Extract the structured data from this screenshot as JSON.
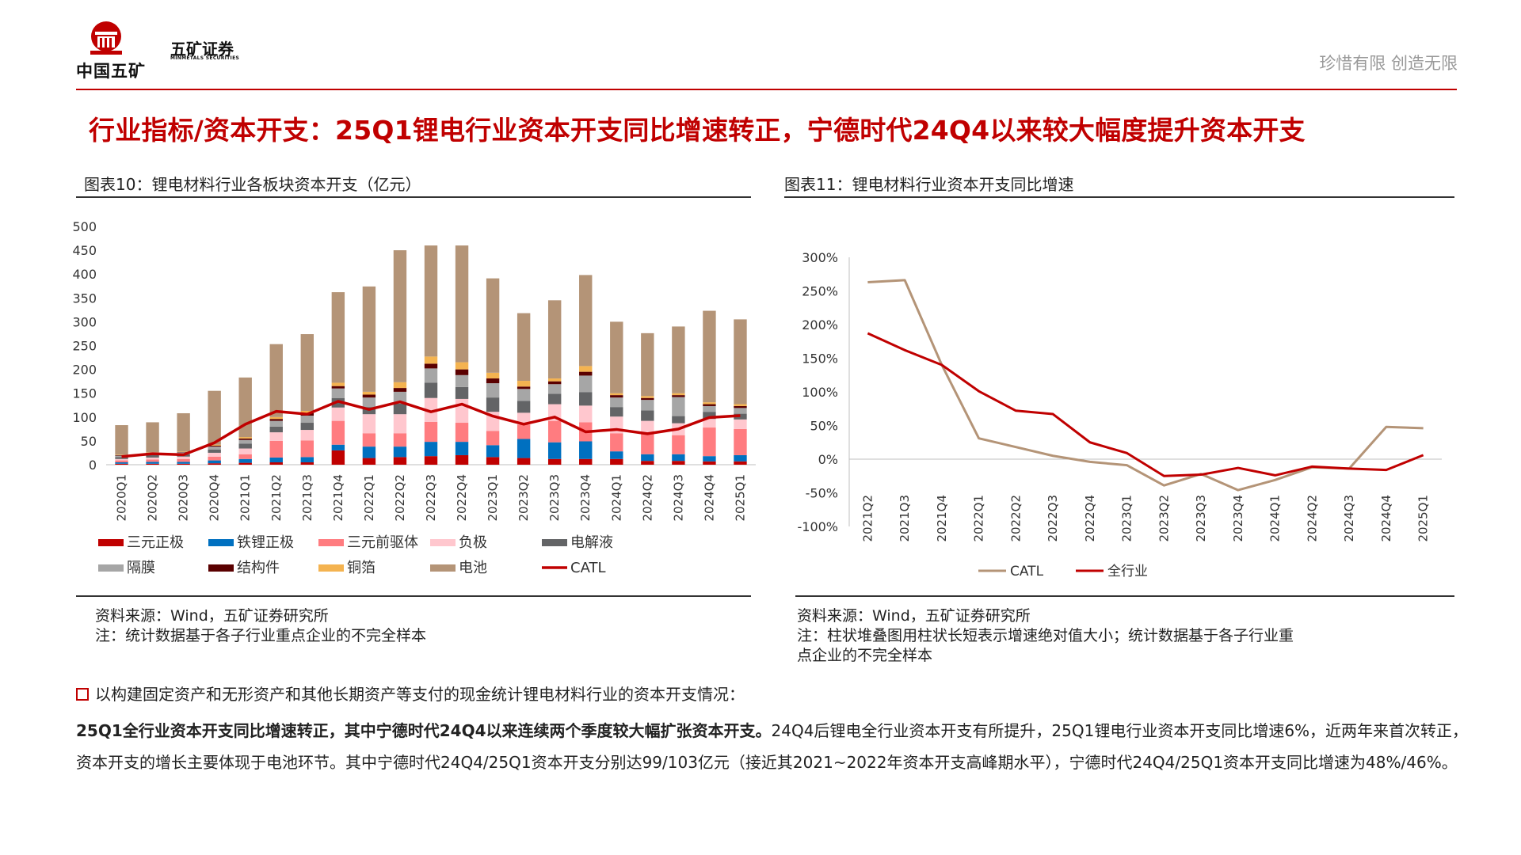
{
  "header": {
    "brand_cn": "中国五矿",
    "brand_securities": "五矿证券",
    "brand_en": "MINMETALS SECURITIES",
    "slogan": "珍惜有限  创造无限",
    "accent_color": "#c00000"
  },
  "main_title": "行业指标/资本开支：25Q1锂电行业资本开支同比增速转正，宁德时代24Q4以来较大幅度提升资本开支",
  "left_panel": {
    "title": "图表10：锂电材料行业各板块资本开支（亿元）",
    "source": "资料来源：Wind，五矿证券研究所",
    "note": "注：统计数据基于各子行业重点企业的不完全样本"
  },
  "right_panel": {
    "title": "图表11：锂电材料行业资本开支同比增速",
    "source": "资料来源：Wind，五矿证券研究所",
    "note_line1": "注：柱状堆叠图用柱状长短表示增速绝对值大小；统计数据基于各子行业重",
    "note_line2": "点企业的不完全样本"
  },
  "chart_data": [
    {
      "type": "bar",
      "stacked": true,
      "categories": [
        "2020Q1",
        "2020Q2",
        "2020Q3",
        "2020Q4",
        "2021Q1",
        "2021Q2",
        "2021Q3",
        "2021Q4",
        "2022Q1",
        "2022Q2",
        "2022Q3",
        "2022Q4",
        "2023Q1",
        "2023Q2",
        "2023Q3",
        "2023Q4",
        "2024Q1",
        "2024Q2",
        "2024Q3",
        "2024Q4",
        "2025Q1"
      ],
      "ylim": [
        0,
        500
      ],
      "yticks": [
        "500",
        "450",
        "400",
        "350",
        "300",
        "250",
        "200",
        "150",
        "100",
        "50",
        "0"
      ],
      "series": [
        {
          "name": "三元正极",
          "color": "#c00000",
          "values": [
            2,
            2,
            2,
            3,
            4,
            5,
            5,
            30,
            14,
            16,
            18,
            20,
            16,
            14,
            12,
            12,
            12,
            8,
            8,
            7,
            7
          ]
        },
        {
          "name": "铁锂正极",
          "color": "#0070c0",
          "values": [
            3,
            4,
            4,
            6,
            8,
            10,
            11,
            12,
            24,
            22,
            30,
            28,
            25,
            40,
            35,
            37,
            16,
            14,
            14,
            11,
            13
          ]
        },
        {
          "name": "三元前驱体",
          "color": "#ff7c80",
          "values": [
            4,
            5,
            6,
            8,
            10,
            35,
            35,
            50,
            28,
            28,
            42,
            40,
            30,
            30,
            45,
            40,
            38,
            45,
            40,
            60,
            55
          ]
        },
        {
          "name": "负极",
          "color": "#ffc7ce",
          "values": [
            3,
            4,
            5,
            8,
            12,
            18,
            22,
            28,
            40,
            40,
            50,
            50,
            40,
            25,
            35,
            35,
            35,
            25,
            25,
            18,
            20
          ]
        },
        {
          "name": "电解液",
          "color": "#636466",
          "values": [
            4,
            5,
            5,
            7,
            10,
            12,
            15,
            20,
            15,
            22,
            32,
            25,
            30,
            25,
            22,
            28,
            20,
            22,
            15,
            15,
            12
          ]
        },
        {
          "name": "隔膜",
          "color": "#a6a6a6",
          "values": [
            3,
            4,
            4,
            6,
            8,
            12,
            15,
            20,
            20,
            25,
            30,
            25,
            30,
            25,
            20,
            35,
            20,
            22,
            40,
            12,
            12
          ]
        },
        {
          "name": "结构件",
          "color": "#5a0000",
          "values": [
            1,
            1,
            1,
            2,
            3,
            4,
            5,
            5,
            6,
            8,
            10,
            12,
            10,
            5,
            6,
            8,
            5,
            4,
            4,
            4,
            4
          ]
        },
        {
          "name": "铜箔",
          "color": "#f4b350",
          "values": [
            1,
            1,
            1,
            2,
            3,
            4,
            5,
            7,
            6,
            12,
            15,
            15,
            12,
            12,
            6,
            12,
            4,
            4,
            4,
            4,
            4
          ]
        },
        {
          "name": "电池",
          "color": "#b49477",
          "values": [
            62,
            63,
            80,
            113,
            125,
            153,
            161,
            190,
            221,
            277,
            233,
            245,
            198,
            142,
            164,
            191,
            150,
            132,
            140,
            192,
            178
          ]
        }
      ],
      "line": {
        "name": "CATL",
        "color": "#c00000",
        "values": [
          17,
          23,
          21,
          46,
          85,
          112,
          106,
          133,
          116,
          132,
          111,
          127,
          102,
          85,
          100,
          69,
          74,
          65,
          75,
          99,
          103
        ]
      }
    },
    {
      "type": "line",
      "categories": [
        "2021Q2",
        "2021Q3",
        "2021Q4",
        "2022Q1",
        "2022Q2",
        "2022Q3",
        "2022Q4",
        "2023Q1",
        "2023Q2",
        "2023Q3",
        "2023Q4",
        "2024Q1",
        "2024Q2",
        "2024Q3",
        "2024Q4",
        "2025Q1"
      ],
      "ylim": [
        -1.0,
        3.0
      ],
      "yticks": [
        "300%",
        "250%",
        "200%",
        "150%",
        "100%",
        "50%",
        "0%",
        "-50%",
        "-100%"
      ],
      "series": [
        {
          "name": "CATL",
          "color": "#b49477",
          "values": [
            2.63,
            2.66,
            1.4,
            0.31,
            0.18,
            0.05,
            -0.04,
            -0.09,
            -0.39,
            -0.22,
            -0.46,
            -0.31,
            -0.12,
            -0.14,
            0.48,
            0.46
          ]
        },
        {
          "name": "全行业",
          "color": "#c00000",
          "values": [
            1.87,
            1.62,
            1.4,
            1.01,
            0.72,
            0.67,
            0.25,
            0.09,
            -0.25,
            -0.23,
            -0.13,
            -0.24,
            -0.11,
            -0.14,
            -0.16,
            0.06
          ]
        }
      ]
    }
  ],
  "bullet": {
    "intro": "以构建固定资产和无形资产和其他长期资产等支付的现金统计锂电材料行业的资本开支情况：",
    "bold": "25Q1全行业资本开支同比增速转正，其中宁德时代24Q4以来连续两个季度较大幅扩张资本开支。",
    "rest": "24Q4后锂电全行业资本开支有所提升，25Q1锂电行业资本开支同比增速6%，近两年来首次转正，资本开支的增长主要体现于电池环节。其中宁德时代24Q4/25Q1资本开支分别达99/103亿元（接近其2021~2022年资本开支高峰期水平），宁德时代24Q4/25Q1资本开支同比增速为48%/46%。"
  }
}
